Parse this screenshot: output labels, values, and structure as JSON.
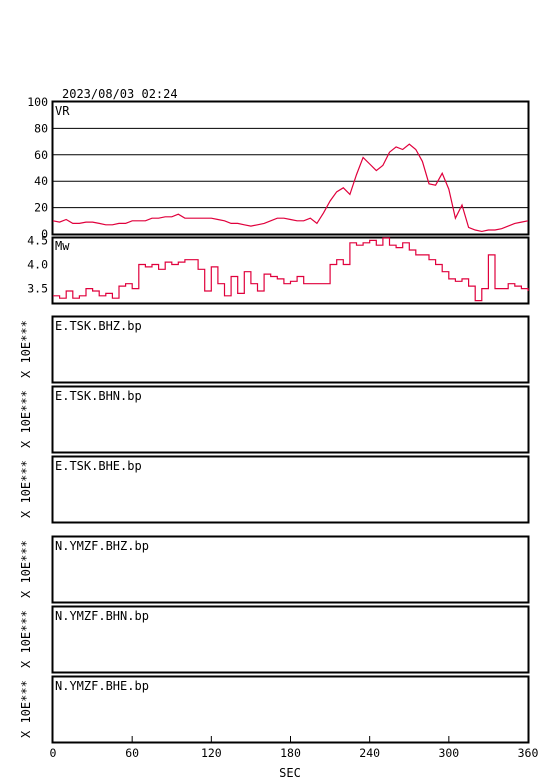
{
  "header": {
    "timestamp": "2023/08/03 02:24"
  },
  "x_axis": {
    "label": "SEC",
    "ticks": [
      0,
      60,
      120,
      180,
      240,
      300,
      360
    ],
    "range": [
      0,
      360
    ]
  },
  "colors": {
    "series": "#e0003c",
    "frame": "#000000"
  },
  "chart_data": [
    {
      "type": "line",
      "panel": "vr",
      "label": "VR",
      "ylim": [
        0,
        100
      ],
      "yticks": [
        0,
        20,
        40,
        60,
        80,
        100
      ],
      "grid": true,
      "x": [
        0,
        5,
        10,
        15,
        20,
        25,
        30,
        35,
        40,
        45,
        50,
        55,
        60,
        65,
        70,
        75,
        80,
        85,
        90,
        95,
        100,
        105,
        110,
        115,
        120,
        125,
        130,
        135,
        140,
        145,
        150,
        155,
        160,
        165,
        170,
        175,
        180,
        185,
        190,
        195,
        200,
        205,
        210,
        215,
        220,
        225,
        230,
        235,
        240,
        245,
        250,
        255,
        260,
        265,
        270,
        275,
        280,
        285,
        290,
        295,
        300,
        305,
        310,
        315,
        320,
        325,
        330,
        335,
        340,
        345,
        350,
        355,
        360
      ],
      "y": [
        10,
        9,
        11,
        8,
        8,
        9,
        9,
        8,
        7,
        7,
        8,
        8,
        10,
        10,
        10,
        12,
        12,
        13,
        13,
        15,
        12,
        12,
        12,
        12,
        12,
        11,
        10,
        8,
        8,
        7,
        6,
        7,
        8,
        10,
        12,
        12,
        11,
        10,
        10,
        12,
        8,
        16,
        25,
        32,
        35,
        30,
        45,
        58,
        53,
        48,
        52,
        62,
        66,
        64,
        68,
        64,
        55,
        38,
        37,
        46,
        34,
        12,
        22,
        5,
        3,
        2,
        3,
        3,
        4,
        6,
        8,
        9,
        10
      ]
    },
    {
      "type": "line",
      "panel": "mw",
      "label": "Mw",
      "ylim": [
        3.2,
        4.55
      ],
      "yticks": [
        "3.5",
        "4.0",
        "4.5"
      ],
      "ytick_values": [
        3.5,
        4.0,
        4.5
      ],
      "grid": false,
      "x": [
        0,
        5,
        10,
        15,
        20,
        25,
        30,
        35,
        40,
        45,
        50,
        55,
        60,
        65,
        70,
        75,
        80,
        85,
        90,
        95,
        100,
        105,
        110,
        115,
        120,
        125,
        130,
        135,
        140,
        145,
        150,
        155,
        160,
        165,
        170,
        175,
        180,
        185,
        190,
        195,
        200,
        205,
        210,
        215,
        220,
        225,
        230,
        235,
        240,
        245,
        250,
        255,
        260,
        265,
        270,
        275,
        280,
        285,
        290,
        295,
        300,
        305,
        310,
        315,
        320,
        325,
        330,
        335,
        340,
        345,
        350,
        355,
        360
      ],
      "y": [
        3.35,
        3.3,
        3.45,
        3.3,
        3.35,
        3.5,
        3.45,
        3.35,
        3.4,
        3.3,
        3.55,
        3.6,
        3.5,
        4.0,
        3.95,
        4.0,
        3.9,
        4.05,
        4.0,
        4.05,
        4.1,
        4.1,
        3.9,
        3.45,
        3.95,
        3.6,
        3.35,
        3.75,
        3.4,
        3.85,
        3.6,
        3.45,
        3.8,
        3.75,
        3.7,
        3.6,
        3.65,
        3.75,
        3.6,
        3.6,
        3.6,
        3.6,
        4.0,
        4.1,
        4.0,
        4.45,
        4.4,
        4.45,
        4.5,
        4.4,
        4.55,
        4.4,
        4.35,
        4.45,
        4.3,
        4.2,
        4.2,
        4.1,
        4.0,
        3.85,
        3.7,
        3.65,
        3.7,
        3.55,
        3.25,
        3.5,
        4.2,
        3.5,
        3.5,
        3.6,
        3.55,
        3.5,
        3.45
      ]
    }
  ],
  "traces": [
    {
      "label": "E.TSK.BHZ.bp",
      "scale": "X 10E***"
    },
    {
      "label": "E.TSK.BHN.bp",
      "scale": "X 10E***"
    },
    {
      "label": "E.TSK.BHE.bp",
      "scale": "X 10E***"
    },
    {
      "label": "N.YMZF.BHZ.bp",
      "scale": "X 10E***"
    },
    {
      "label": "N.YMZF.BHN.bp",
      "scale": "X 10E***"
    },
    {
      "label": "N.YMZF.BHE.bp",
      "scale": "X 10E***"
    }
  ]
}
